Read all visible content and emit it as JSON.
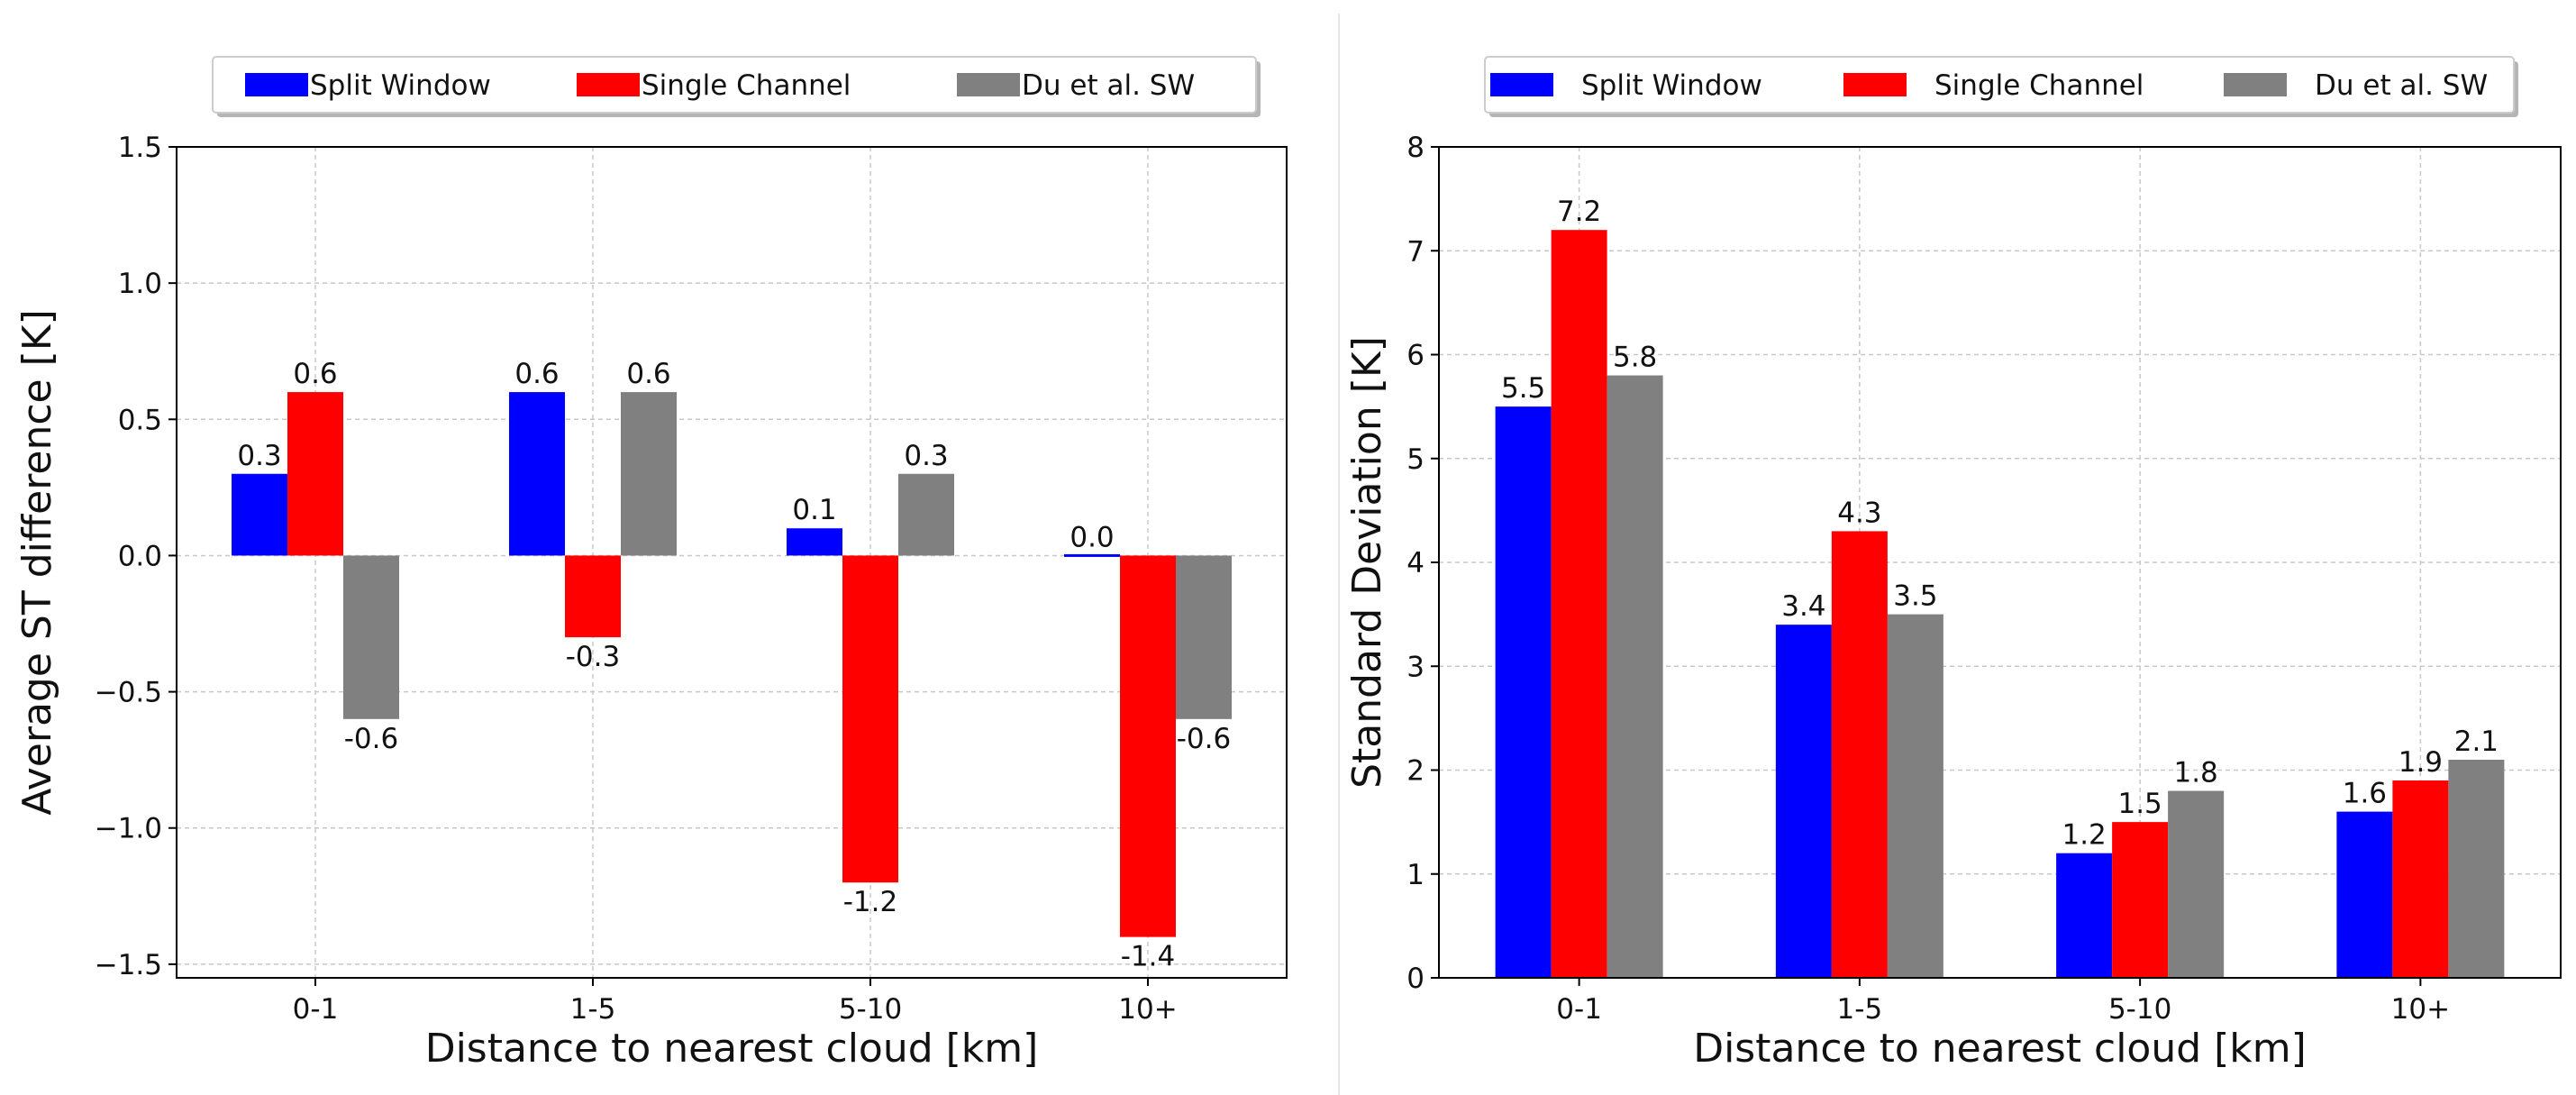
{
  "chart_data": [
    {
      "type": "bar",
      "title": "",
      "categories": [
        "0-1",
        "1-5",
        "5-10",
        "10+"
      ],
      "xlabel": "Distance to nearest cloud [km]",
      "ylabel": "Average ST difference [K]",
      "ylim": [
        -1.55,
        1.5
      ],
      "yticks": [
        -1.5,
        -1.0,
        -0.5,
        0.0,
        0.5,
        1.0,
        1.5
      ],
      "ytick_labels": [
        "−1.5",
        "−1.0",
        "−0.5",
        "0.0",
        "0.5",
        "1.0",
        "1.5"
      ],
      "grid": true,
      "legend_position": "top-center",
      "series": [
        {
          "name": "Split Window",
          "color": "#0000ff",
          "values": [
            0.3,
            0.6,
            0.1,
            0.0
          ],
          "labels": [
            "0.3",
            "0.6",
            "0.1",
            "0.0"
          ]
        },
        {
          "name": "Single Channel",
          "color": "#ff0000",
          "values": [
            0.6,
            -0.3,
            -1.2,
            -1.4
          ],
          "labels": [
            "0.6",
            "-0.3",
            "-1.2",
            "-1.4"
          ]
        },
        {
          "name": "Du et al. SW",
          "color": "#808080",
          "values": [
            -0.6,
            0.6,
            0.3,
            -0.6
          ],
          "labels": [
            "-0.6",
            "0.6",
            "0.3",
            "-0.6"
          ]
        }
      ]
    },
    {
      "type": "bar",
      "title": "",
      "categories": [
        "0-1",
        "1-5",
        "5-10",
        "10+"
      ],
      "xlabel": "Distance to nearest cloud [km]",
      "ylabel": "Standard Deviation [K]",
      "ylim": [
        0,
        8
      ],
      "yticks": [
        0,
        1,
        2,
        3,
        4,
        5,
        6,
        7,
        8
      ],
      "ytick_labels": [
        "0",
        "1",
        "2",
        "3",
        "4",
        "5",
        "6",
        "7",
        "8"
      ],
      "grid": true,
      "legend_position": "top-center",
      "series": [
        {
          "name": "Split Window",
          "color": "#0000ff",
          "values": [
            5.5,
            3.4,
            1.2,
            1.6
          ],
          "labels": [
            "5.5",
            "3.4",
            "1.2",
            "1.6"
          ]
        },
        {
          "name": "Single Channel",
          "color": "#ff0000",
          "values": [
            7.2,
            4.3,
            1.5,
            1.9
          ],
          "labels": [
            "7.2",
            "4.3",
            "1.5",
            "1.9"
          ]
        },
        {
          "name": "Du et al. SW",
          "color": "#808080",
          "values": [
            5.8,
            3.5,
            1.8,
            2.1
          ],
          "labels": [
            "5.8",
            "3.5",
            "1.8",
            "2.1"
          ]
        }
      ]
    }
  ]
}
